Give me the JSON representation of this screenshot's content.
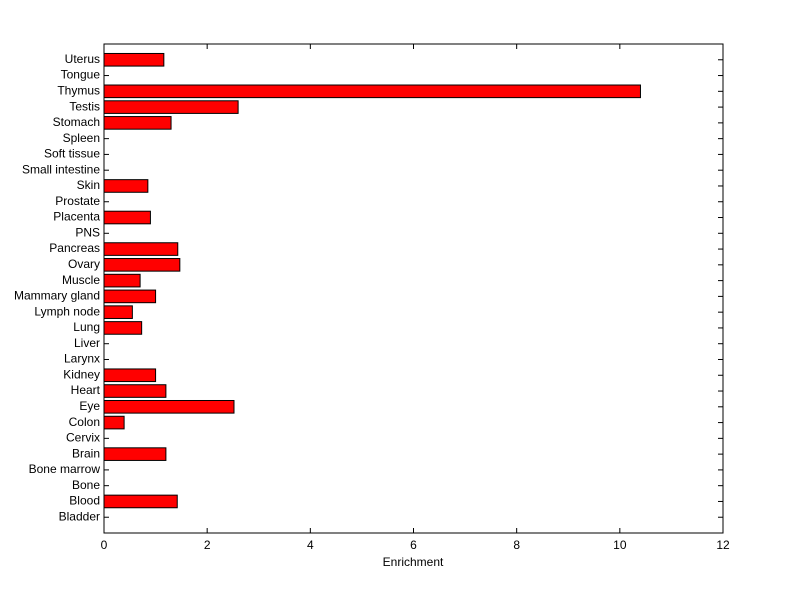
{
  "chart_data": {
    "type": "barh",
    "xlabel": "Enrichment",
    "categories": [
      "Bladder",
      "Blood",
      "Bone",
      "Bone marrow",
      "Brain",
      "Cervix",
      "Colon",
      "Eye",
      "Heart",
      "Kidney",
      "Larynx",
      "Liver",
      "Lung",
      "Lymph node",
      "Mammary gland",
      "Muscle",
      "Ovary",
      "Pancreas",
      "PNS",
      "Placenta",
      "Prostate",
      "Skin",
      "Small intestine",
      "Soft tissue",
      "Spleen",
      "Stomach",
      "Testis",
      "Thymus",
      "Tongue",
      "Uterus"
    ],
    "values": [
      0,
      1.42,
      0,
      0,
      1.2,
      0,
      0.39,
      2.52,
      1.2,
      1.0,
      0,
      0,
      0.73,
      0.55,
      1.0,
      0.7,
      1.47,
      1.43,
      0,
      0.9,
      0,
      0.85,
      0,
      0,
      0,
      1.3,
      2.6,
      10.4,
      0,
      1.16
    ],
    "color": "#ff0000",
    "xlim": [
      0,
      12
    ],
    "xticks": [
      0,
      2,
      4,
      6,
      8,
      10,
      12
    ]
  }
}
